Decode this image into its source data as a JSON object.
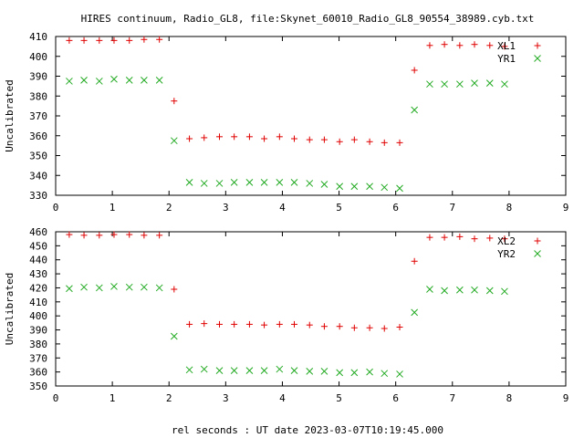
{
  "title": "HIRES continuum, Radio_GL8, file:Skynet_60010_Radio_GL8_90554_38989.cyb.txt",
  "xlabel": "rel seconds : UT date 2023-03-07T10:19:45.000",
  "colors": {
    "xl": "#e00000",
    "yr": "#22aa22",
    "axis": "#000000"
  },
  "chart_data": [
    {
      "type": "scatter",
      "ylabel": "Uncalibrated",
      "xlim": [
        0,
        9
      ],
      "ylim": [
        330,
        410
      ],
      "xticks": [
        0,
        1,
        2,
        3,
        4,
        5,
        6,
        7,
        8,
        9
      ],
      "yticks": [
        330,
        340,
        350,
        360,
        370,
        380,
        390,
        400,
        410
      ],
      "legend_position": "top-right",
      "series": [
        {
          "name": "XL1",
          "marker": "plus",
          "color": "#e00000",
          "x": [
            0.24,
            0.5,
            0.77,
            1.03,
            1.3,
            1.56,
            1.83,
            2.09,
            2.36,
            2.62,
            2.89,
            3.15,
            3.42,
            3.68,
            3.95,
            4.21,
            4.48,
            4.74,
            5.01,
            5.27,
            5.54,
            5.8,
            6.07,
            6.33,
            6.6,
            6.86,
            7.13,
            7.39,
            7.66,
            7.92
          ],
          "y": [
            408,
            408,
            408,
            408,
            408,
            408.5,
            408.5,
            377.5,
            358.5,
            359,
            359.5,
            359.5,
            359.5,
            358.5,
            359.5,
            358.5,
            358,
            358,
            357,
            358,
            357,
            356.5,
            356.5,
            393,
            405.5,
            406,
            405.5,
            406,
            405.5,
            405
          ]
        },
        {
          "name": "YR1",
          "marker": "cross",
          "color": "#22aa22",
          "x": [
            0.24,
            0.5,
            0.77,
            1.03,
            1.3,
            1.56,
            1.83,
            2.09,
            2.36,
            2.62,
            2.89,
            3.15,
            3.42,
            3.68,
            3.95,
            4.21,
            4.48,
            4.74,
            5.01,
            5.27,
            5.54,
            5.8,
            6.07,
            6.33,
            6.6,
            6.86,
            7.13,
            7.39,
            7.66,
            7.92
          ],
          "y": [
            387.5,
            388,
            387.5,
            388.5,
            388,
            388,
            388,
            357.5,
            336.5,
            336,
            336,
            336.5,
            336.5,
            336.5,
            336.5,
            336.5,
            336,
            335.5,
            334.5,
            334.5,
            334.5,
            334,
            333.5,
            373,
            386,
            386,
            386,
            386.5,
            386.5,
            386
          ]
        }
      ]
    },
    {
      "type": "scatter",
      "ylabel": "Uncalibrated",
      "xlim": [
        0,
        9
      ],
      "ylim": [
        350,
        460
      ],
      "xticks": [
        0,
        1,
        2,
        3,
        4,
        5,
        6,
        7,
        8,
        9
      ],
      "yticks": [
        350,
        360,
        370,
        380,
        390,
        400,
        410,
        420,
        430,
        440,
        450,
        460
      ],
      "legend_position": "top-right",
      "series": [
        {
          "name": "XL2",
          "marker": "plus",
          "color": "#e00000",
          "x": [
            0.24,
            0.5,
            0.77,
            1.03,
            1.3,
            1.56,
            1.83,
            2.09,
            2.36,
            2.62,
            2.89,
            3.15,
            3.42,
            3.68,
            3.95,
            4.21,
            4.48,
            4.74,
            5.01,
            5.27,
            5.54,
            5.8,
            6.07,
            6.33,
            6.6,
            6.86,
            7.13,
            7.39,
            7.66,
            7.92
          ],
          "y": [
            458,
            457.5,
            457.5,
            458,
            458,
            457.5,
            457.5,
            419,
            394,
            394.5,
            394,
            394,
            394,
            393.5,
            394,
            394,
            393.5,
            392.5,
            392.5,
            391.5,
            391.5,
            391,
            392,
            439,
            456,
            456,
            456.5,
            455,
            455.5,
            455
          ]
        },
        {
          "name": "YR2",
          "marker": "cross",
          "color": "#22aa22",
          "x": [
            0.24,
            0.5,
            0.77,
            1.03,
            1.3,
            1.56,
            1.83,
            2.09,
            2.36,
            2.62,
            2.89,
            3.15,
            3.42,
            3.68,
            3.95,
            4.21,
            4.48,
            4.74,
            5.01,
            5.27,
            5.54,
            5.8,
            6.07,
            6.33,
            6.6,
            6.86,
            7.13,
            7.39,
            7.66,
            7.92
          ],
          "y": [
            419.5,
            420.5,
            420,
            421,
            420.5,
            420.5,
            420,
            385.5,
            361.5,
            362,
            361,
            361,
            361,
            361,
            362,
            361,
            360.5,
            360.5,
            359.5,
            359.5,
            360,
            359,
            358.5,
            402.5,
            419,
            418,
            418.5,
            418.5,
            418,
            417.5
          ]
        }
      ]
    }
  ]
}
